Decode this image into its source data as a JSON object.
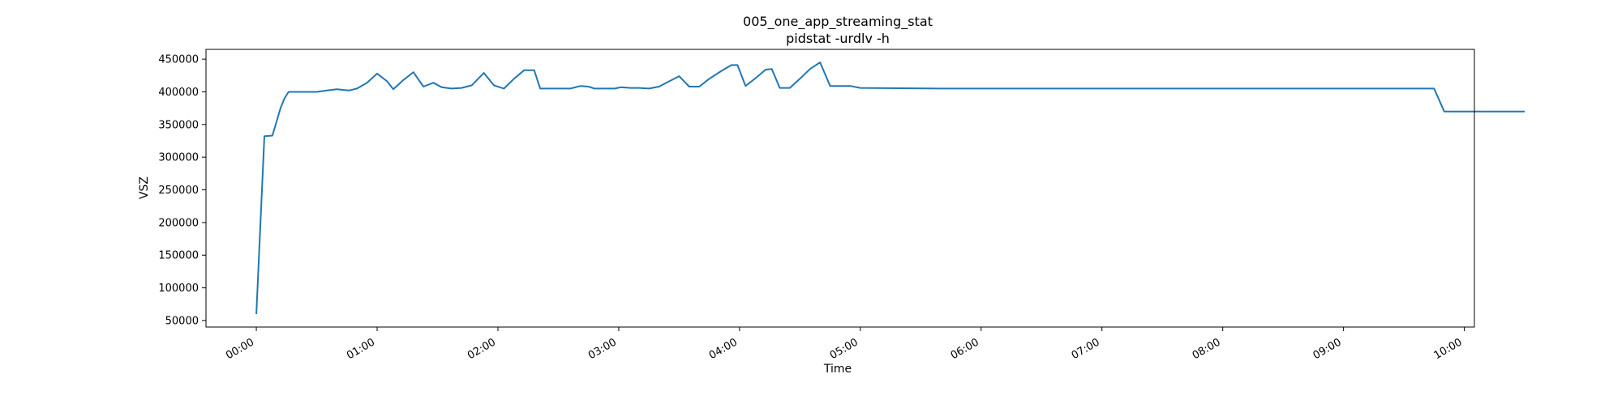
{
  "chart_data": {
    "type": "line",
    "title": "005_one_app_streaming_stat",
    "subtitle": "pidstat -urdlv -h",
    "xlabel": "Time",
    "ylabel": "VSZ",
    "xlim": [
      "-00:25",
      "10:05"
    ],
    "ylim": [
      40000,
      465000
    ],
    "grid": false,
    "legend": "none",
    "series": [
      {
        "color": "#1f77b4",
        "points": [
          [
            "00:00",
            60000
          ],
          [
            "00:04",
            332000
          ],
          [
            "00:08",
            333000
          ],
          [
            "00:12",
            375000
          ],
          [
            "00:14",
            390000
          ],
          [
            "00:16",
            400000
          ],
          [
            "00:30",
            400000
          ],
          [
            "00:35",
            402000
          ],
          [
            "00:40",
            404000
          ],
          [
            "00:46",
            402000
          ],
          [
            "00:50",
            405000
          ],
          [
            "00:55",
            414000
          ],
          [
            "01:00",
            428000
          ],
          [
            "01:05",
            416000
          ],
          [
            "01:08",
            404000
          ],
          [
            "01:13",
            418000
          ],
          [
            "01:18",
            430000
          ],
          [
            "01:23",
            408000
          ],
          [
            "01:28",
            414000
          ],
          [
            "01:32",
            407000
          ],
          [
            "01:37",
            405000
          ],
          [
            "01:42",
            406000
          ],
          [
            "01:47",
            410000
          ],
          [
            "01:53",
            429000
          ],
          [
            "01:58",
            410000
          ],
          [
            "02:03",
            405000
          ],
          [
            "02:08",
            420000
          ],
          [
            "02:13",
            433000
          ],
          [
            "02:18",
            433000
          ],
          [
            "02:21",
            405000
          ],
          [
            "02:26",
            405000
          ],
          [
            "02:36",
            405000
          ],
          [
            "02:41",
            409000
          ],
          [
            "02:45",
            408000
          ],
          [
            "02:48",
            405000
          ],
          [
            "02:58",
            405000
          ],
          [
            "03:01",
            407000
          ],
          [
            "03:06",
            406000
          ],
          [
            "03:10",
            406000
          ],
          [
            "03:15",
            405000
          ],
          [
            "03:20",
            408000
          ],
          [
            "03:25",
            416000
          ],
          [
            "03:30",
            424000
          ],
          [
            "03:35",
            408000
          ],
          [
            "03:40",
            408000
          ],
          [
            "03:45",
            420000
          ],
          [
            "03:51",
            432000
          ],
          [
            "03:56",
            441000
          ],
          [
            "03:59",
            441000
          ],
          [
            "04:03",
            409000
          ],
          [
            "04:08",
            421000
          ],
          [
            "04:13",
            434000
          ],
          [
            "04:16",
            435000
          ],
          [
            "04:20",
            406000
          ],
          [
            "04:25",
            406000
          ],
          [
            "04:30",
            420000
          ],
          [
            "04:35",
            435000
          ],
          [
            "04:40",
            445000
          ],
          [
            "04:45",
            409000
          ],
          [
            "04:50",
            409000
          ],
          [
            "04:55",
            409000
          ],
          [
            "05:00",
            406000
          ],
          [
            "05:40",
            405000
          ],
          [
            "09:00",
            405000
          ],
          [
            "09:45",
            405000
          ],
          [
            "09:50",
            370000
          ],
          [
            "10:00",
            370000
          ],
          [
            "10:30",
            370000
          ]
        ]
      }
    ],
    "xticks": [
      "00:00",
      "01:00",
      "02:00",
      "03:00",
      "04:00",
      "05:00",
      "06:00",
      "07:00",
      "08:00",
      "09:00",
      "10:00"
    ],
    "yticks": [
      50000,
      100000,
      150000,
      200000,
      250000,
      300000,
      350000,
      400000,
      450000
    ]
  }
}
